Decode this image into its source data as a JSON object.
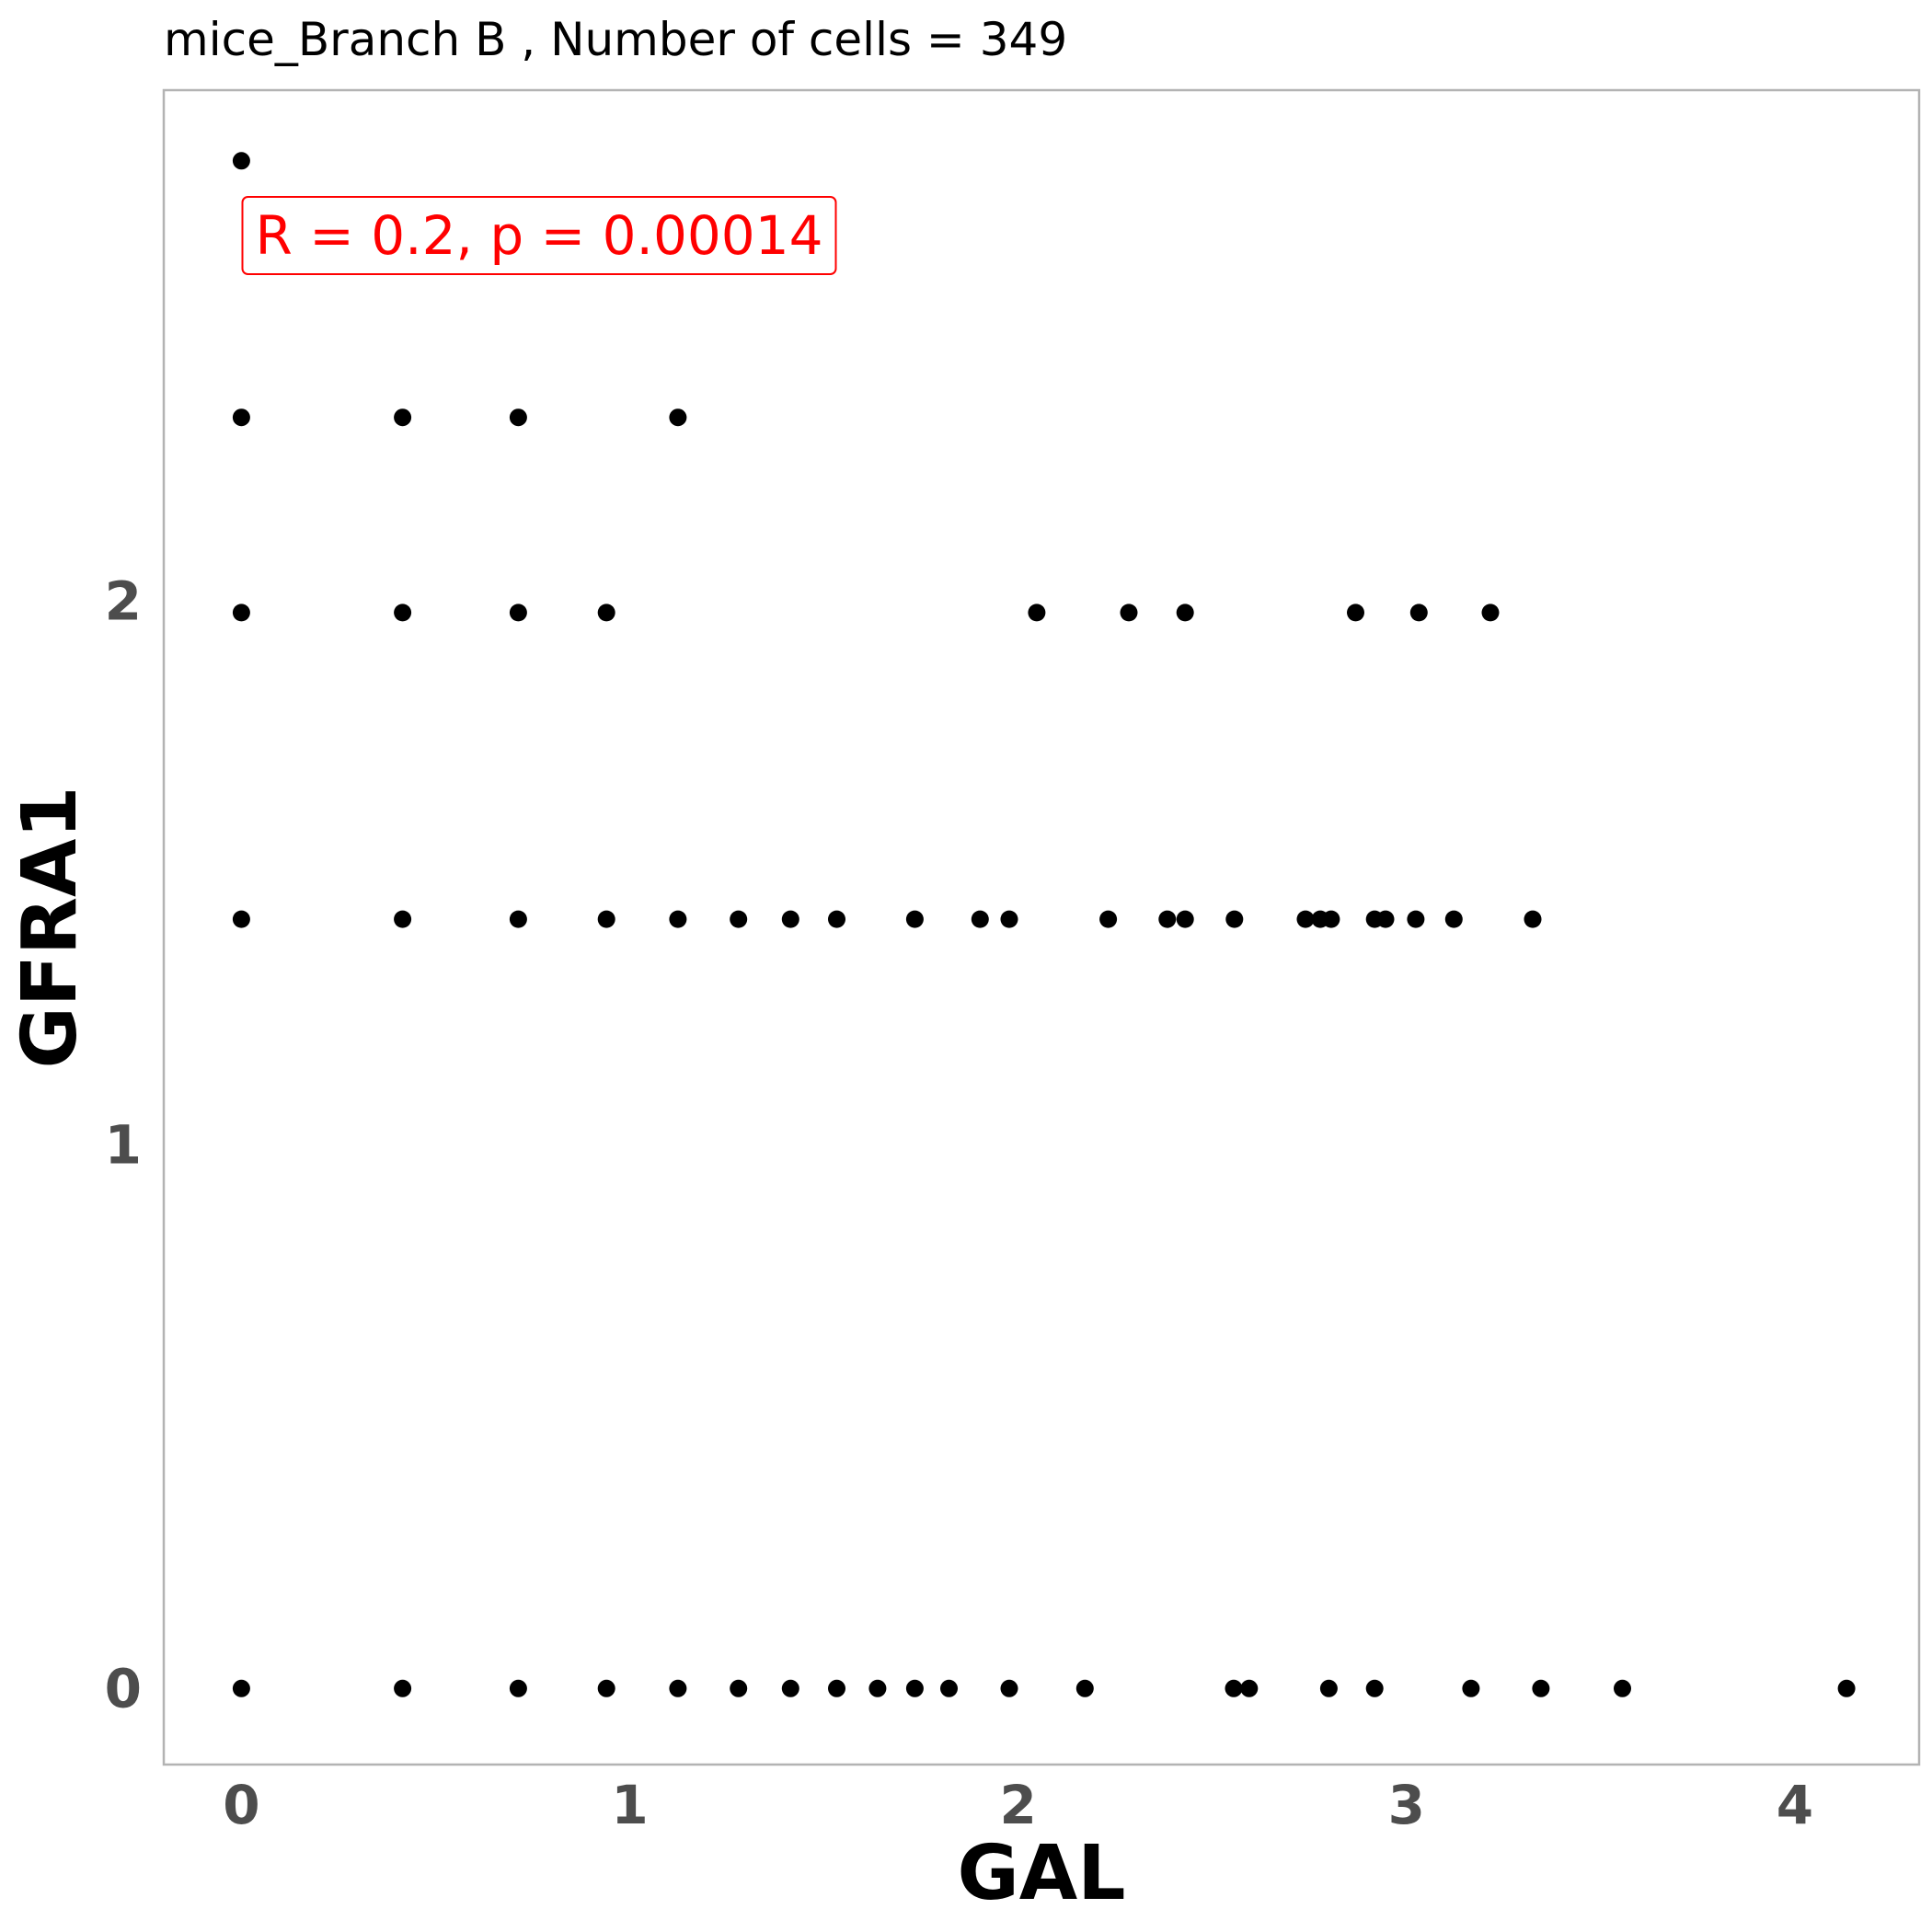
{
  "chart_data": {
    "type": "scatter",
    "title": "mice_Branch B , Number of cells =  349",
    "xlabel": "GAL",
    "ylabel": "GFRA1",
    "xlim": [
      -0.2,
      4.32
    ],
    "ylim": [
      -0.14,
      2.94
    ],
    "xticks": [
      0,
      1,
      2,
      3,
      4
    ],
    "yticks": [
      0,
      1,
      2
    ],
    "grid": false,
    "point_color": "#000000",
    "annotation": {
      "text": "R = 0.2, p = 0.00014",
      "color": "#ff0000",
      "position": "top-left"
    },
    "x": [
      0,
      0.415,
      0.713,
      0.94,
      1.124,
      1.28,
      1.414,
      1.533,
      1.638,
      1.734,
      1.822,
      1.977,
      2.172,
      2.555,
      2.595,
      2.8,
      2.918,
      3.166,
      3.346,
      3.556,
      4.133,
      0,
      0.415,
      0.713,
      0.94,
      1.124,
      1.28,
      1.414,
      1.533,
      1.734,
      1.902,
      1.977,
      2.232,
      2.384,
      2.43,
      2.557,
      2.74,
      2.778,
      2.806,
      2.918,
      2.946,
      3.024,
      3.122,
      3.325,
      0,
      0.415,
      0.713,
      0.94,
      2.048,
      2.285,
      2.43,
      2.869,
      3.032,
      3.216,
      0,
      0.415,
      0.713,
      1.124,
      0
    ],
    "y": [
      0,
      0,
      0,
      0,
      0,
      0,
      0,
      0,
      0,
      0,
      0,
      0,
      0,
      0,
      0,
      0,
      0,
      0,
      0,
      0,
      0,
      1.415,
      1.415,
      1.415,
      1.415,
      1.415,
      1.415,
      1.415,
      1.415,
      1.415,
      1.415,
      1.415,
      1.415,
      1.415,
      1.415,
      1.415,
      1.415,
      1.415,
      1.415,
      1.415,
      1.415,
      1.415,
      1.415,
      1.415,
      1.979,
      1.979,
      1.979,
      1.979,
      1.979,
      1.979,
      1.979,
      1.979,
      1.979,
      1.979,
      2.338,
      2.338,
      2.338,
      2.338,
      2.81
    ]
  }
}
